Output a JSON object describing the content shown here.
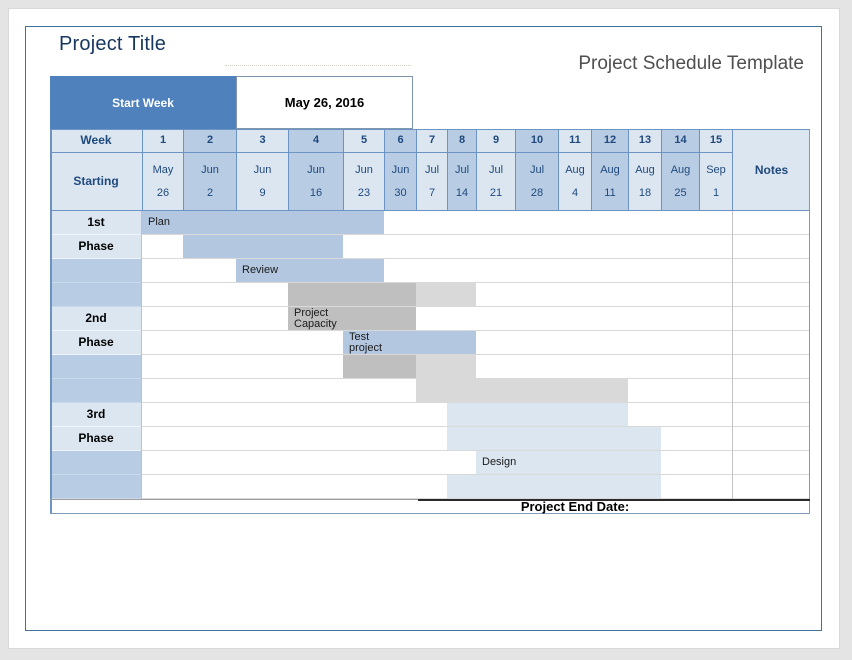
{
  "window": {
    "title_left": "Project Title",
    "title_right": "Project Schedule Template"
  },
  "start_week": {
    "label": "Start Week",
    "value": "May 26, 2016"
  },
  "footer": {
    "end_date_label": "Project End Date:"
  },
  "colors": {
    "accent_blue": "#4f81bd",
    "header_light": "#dce6f1",
    "header_shaded": "#b8cce4",
    "bar_blue": "#b3c7e1",
    "bar_dark_gray": "#bfbfbf",
    "bar_light_gray": "#d9d9d9",
    "bar_pale_blue": "#dce6f1",
    "header_text_navy": "#1f497d",
    "page_border_blue": "#41719c"
  },
  "gantt": {
    "week_header_label": "Week",
    "starting_label": "Starting",
    "notes_label": "Notes",
    "weeks": [
      {
        "num": "1",
        "month": "May",
        "day": "26",
        "shaded": false
      },
      {
        "num": "2",
        "month": "Jun",
        "day": "2",
        "shaded": true
      },
      {
        "num": "3",
        "month": "Jun",
        "day": "9",
        "shaded": false
      },
      {
        "num": "4",
        "month": "Jun",
        "day": "16",
        "shaded": true
      },
      {
        "num": "5",
        "month": "Jun",
        "day": "23",
        "shaded": false
      },
      {
        "num": "6",
        "month": "Jun",
        "day": "30",
        "shaded": true
      },
      {
        "num": "7",
        "month": "Jul",
        "day": "7",
        "shaded": false
      },
      {
        "num": "8",
        "month": "Jul",
        "day": "14",
        "shaded": true
      },
      {
        "num": "9",
        "month": "Jul",
        "day": "21",
        "shaded": false
      },
      {
        "num": "10",
        "month": "Jul",
        "day": "28",
        "shaded": true
      },
      {
        "num": "11",
        "month": "Aug",
        "day": "4",
        "shaded": false
      },
      {
        "num": "12",
        "month": "Aug",
        "day": "11",
        "shaded": true
      },
      {
        "num": "13",
        "month": "Aug",
        "day": "18",
        "shaded": false
      },
      {
        "num": "14",
        "month": "Aug",
        "day": "25",
        "shaded": true
      },
      {
        "num": "15",
        "month": "Sep",
        "day": "1",
        "shaded": false
      }
    ],
    "row_labels": [
      "1st",
      "Phase",
      "",
      "",
      "2nd",
      "Phase",
      "",
      "",
      "3rd",
      "Phase",
      "",
      ""
    ],
    "bars": [
      {
        "row": 1,
        "from_week": 1,
        "to_week": 5,
        "style": "blue",
        "label": "Plan"
      },
      {
        "row": 2,
        "from_week": 2,
        "to_week": 4,
        "style": "blue",
        "label": ""
      },
      {
        "row": 3,
        "from_week": 3,
        "to_week": 5,
        "style": "blue",
        "label": "Review"
      },
      {
        "row": 4,
        "from_week": 4,
        "to_week": 6,
        "style": "dark-gray",
        "label": ""
      },
      {
        "row": 4,
        "from_week": 7,
        "to_week": 8,
        "style": "light-gray",
        "label": ""
      },
      {
        "row": 5,
        "from_week": 4,
        "to_week": 6,
        "style": "dark-gray",
        "label": "Project\nCapacity"
      },
      {
        "row": 6,
        "from_week": 5,
        "to_week": 8,
        "style": "blue",
        "label": "Test\nproject"
      },
      {
        "row": 7,
        "from_week": 5,
        "to_week": 6,
        "style": "dark-gray",
        "label": ""
      },
      {
        "row": 7,
        "from_week": 7,
        "to_week": 8,
        "style": "light-gray",
        "label": ""
      },
      {
        "row": 8,
        "from_week": 7,
        "to_week": 12,
        "style": "light-gray",
        "label": ""
      },
      {
        "row": 9,
        "from_week": 8,
        "to_week": 12,
        "style": "pale-blue",
        "label": ""
      },
      {
        "row": 10,
        "from_week": 8,
        "to_week": 13,
        "style": "pale-blue",
        "label": ""
      },
      {
        "row": 11,
        "from_week": 9,
        "to_week": 13,
        "style": "pale-blue",
        "label": "Design"
      },
      {
        "row": 12,
        "from_week": 8,
        "to_week": 13,
        "style": "pale-blue",
        "label": ""
      }
    ]
  }
}
